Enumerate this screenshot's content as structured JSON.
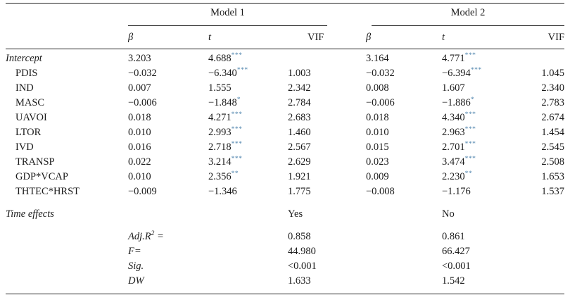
{
  "colors": {
    "text": "#1b1b1b",
    "rules": "#262626",
    "stars": "#4a80ab",
    "background": "#ffffff"
  },
  "table": {
    "models": [
      {
        "label": "Model 1"
      },
      {
        "label": "Model 2"
      }
    ],
    "col_headers": {
      "beta": "β",
      "t": "t",
      "vif": "VIF"
    },
    "rows": [
      {
        "label": "Intercept",
        "italic": true,
        "indent": false,
        "m1": {
          "beta": "3.203",
          "t": "4.688",
          "stars": "***",
          "vif": ""
        },
        "m2": {
          "beta": "3.164",
          "t": "4.771",
          "stars": "***",
          "vif": ""
        }
      },
      {
        "label": "PDIS",
        "italic": false,
        "indent": true,
        "m1": {
          "beta": "−0.032",
          "t": "−6.340",
          "stars": "***",
          "vif": "1.003"
        },
        "m2": {
          "beta": "−0.032",
          "t": "−6.394",
          "stars": "***",
          "vif": "1.045"
        }
      },
      {
        "label": "IND",
        "italic": false,
        "indent": true,
        "m1": {
          "beta": "0.007",
          "t": "1.555",
          "stars": "",
          "vif": "2.342"
        },
        "m2": {
          "beta": "0.008",
          "t": "1.607",
          "stars": "",
          "vif": "2.340"
        }
      },
      {
        "label": "MASC",
        "italic": false,
        "indent": true,
        "m1": {
          "beta": "−0.006",
          "t": "−1.848",
          "stars": "*",
          "vif": "2.784"
        },
        "m2": {
          "beta": "−0.006",
          "t": "−1.886",
          "stars": "*",
          "vif": "2.783"
        }
      },
      {
        "label": "UAVOI",
        "italic": false,
        "indent": true,
        "m1": {
          "beta": "0.018",
          "t": "4.271",
          "stars": "***",
          "vif": "2.683"
        },
        "m2": {
          "beta": "0.018",
          "t": "4.340",
          "stars": "***",
          "vif": "2.674"
        }
      },
      {
        "label": "LTOR",
        "italic": false,
        "indent": true,
        "m1": {
          "beta": "0.010",
          "t": "2.993",
          "stars": "***",
          "vif": "1.460"
        },
        "m2": {
          "beta": "0.010",
          "t": "2.963",
          "stars": "***",
          "vif": "1.454"
        }
      },
      {
        "label": "IVD",
        "italic": false,
        "indent": true,
        "m1": {
          "beta": "0.016",
          "t": "2.718",
          "stars": "***",
          "vif": "2.567"
        },
        "m2": {
          "beta": "0.015",
          "t": "2.701",
          "stars": "***",
          "vif": "2.545"
        }
      },
      {
        "label": "TRANSP",
        "italic": false,
        "indent": true,
        "m1": {
          "beta": "0.022",
          "t": "3.214",
          "stars": "***",
          "vif": "2.629"
        },
        "m2": {
          "beta": "0.023",
          "t": "3.474",
          "stars": "***",
          "vif": "2.508"
        }
      },
      {
        "label": "GDP*VCAP",
        "italic": false,
        "indent": true,
        "m1": {
          "beta": "0.010",
          "t": "2.356",
          "stars": "**",
          "vif": "1.921"
        },
        "m2": {
          "beta": "0.009",
          "t": "2.230",
          "stars": "**",
          "vif": "1.653"
        }
      },
      {
        "label": "THTEC*HRST",
        "italic": false,
        "indent": true,
        "m1": {
          "beta": "−0.009",
          "t": "−1.346",
          "stars": "",
          "vif": "1.775"
        },
        "m2": {
          "beta": "−0.008",
          "t": "−1.176",
          "stars": "",
          "vif": "1.537"
        }
      }
    ],
    "time_effects": {
      "label": "Time effects",
      "m1": "Yes",
      "m2": "No"
    },
    "stats": [
      {
        "pre": "Adj.R",
        "sup": "2",
        "post": " =",
        "m1": "0.858",
        "m2": "0.861"
      },
      {
        "pre": "F=",
        "sup": "",
        "post": "",
        "m1": "44.980",
        "m2": "66.427"
      },
      {
        "pre": "Sig.",
        "sup": "",
        "post": "",
        "m1": "<0.001",
        "m2": "<0.001"
      },
      {
        "pre": "DW",
        "sup": "",
        "post": "",
        "m1": "1.633",
        "m2": "1.542"
      }
    ]
  }
}
